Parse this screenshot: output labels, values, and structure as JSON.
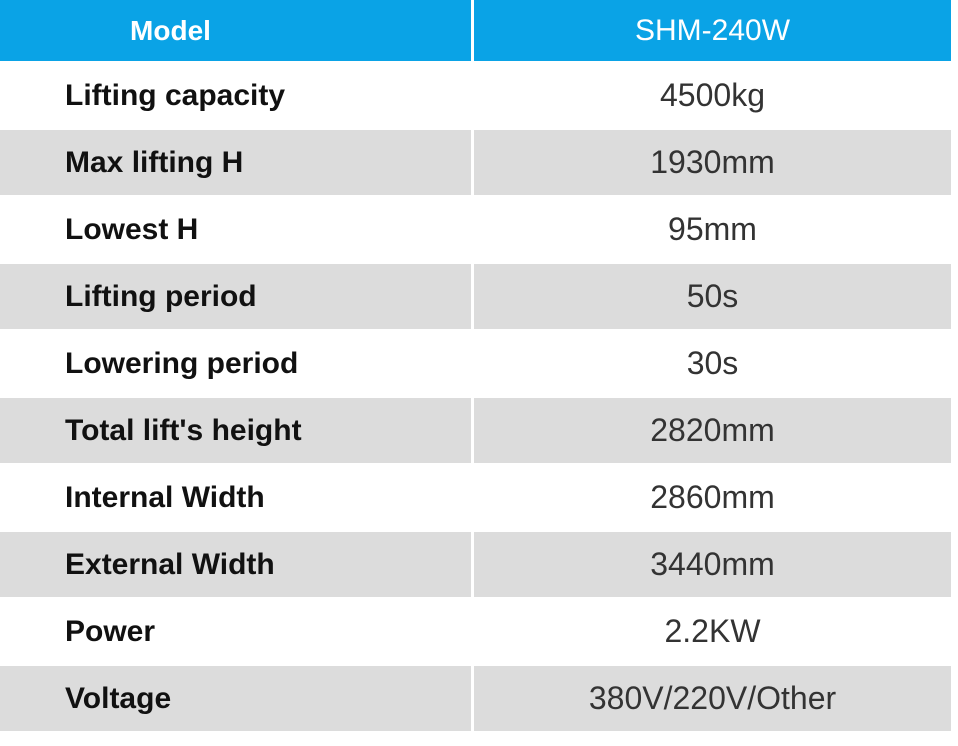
{
  "table": {
    "header": [
      "Model",
      "SHM-240W"
    ],
    "rows": [
      [
        "Lifting capacity",
        "4500kg"
      ],
      [
        "Max lifting H",
        "1930mm"
      ],
      [
        "Lowest H",
        "95mm"
      ],
      [
        "Lifting period",
        "50s"
      ],
      [
        "Lowering period",
        "30s"
      ],
      [
        "Total lift's height",
        "2820mm"
      ],
      [
        "Internal Width",
        "2860mm"
      ],
      [
        "External Width",
        "3440mm"
      ],
      [
        "Power",
        "2.2KW"
      ],
      [
        "Voltage",
        "380V/220V/Other"
      ]
    ]
  }
}
